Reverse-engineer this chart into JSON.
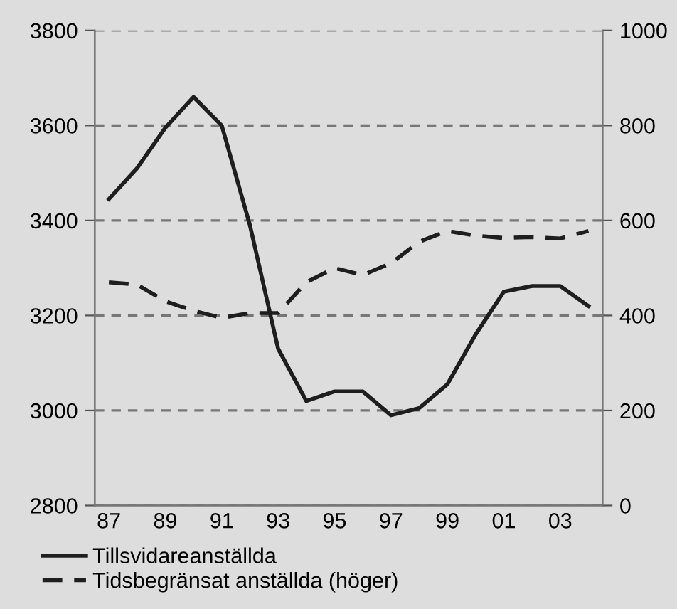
{
  "chart_data": {
    "type": "line",
    "categories": [
      "87",
      null,
      "89",
      null,
      "91",
      null,
      "93",
      null,
      "95",
      null,
      "97",
      null,
      "99",
      null,
      "01",
      null,
      "03",
      null
    ],
    "series": [
      {
        "name": "Tillsvidareanställda",
        "color": "#1e1e1e",
        "line_style": "solid",
        "values": [
          3445,
          3510,
          3595,
          3660,
          3600,
          3390,
          3130,
          3020,
          3040,
          3040,
          2990,
          3005,
          3055,
          3160,
          3250,
          3262,
          3262,
          3220
        ]
      },
      {
        "name": "Tidsbegränsat anställda (höger)",
        "color": "#1e1e1e",
        "line_style": "dashed",
        "axis": "y2",
        "values": [
          470,
          465,
          430,
          410,
          395,
          405,
          405,
          470,
          500,
          485,
          510,
          555,
          578,
          568,
          563,
          565,
          562,
          578
        ]
      }
    ],
    "ylim": [
      2800,
      3800
    ],
    "yticks": [
      2800,
      3000,
      3200,
      3400,
      3600,
      3800
    ],
    "y2lim": [
      0,
      1000
    ],
    "y2ticks": [
      0,
      200,
      400,
      600,
      800,
      1000
    ],
    "grid": "y",
    "legend": "bottom",
    "marker": "none"
  }
}
